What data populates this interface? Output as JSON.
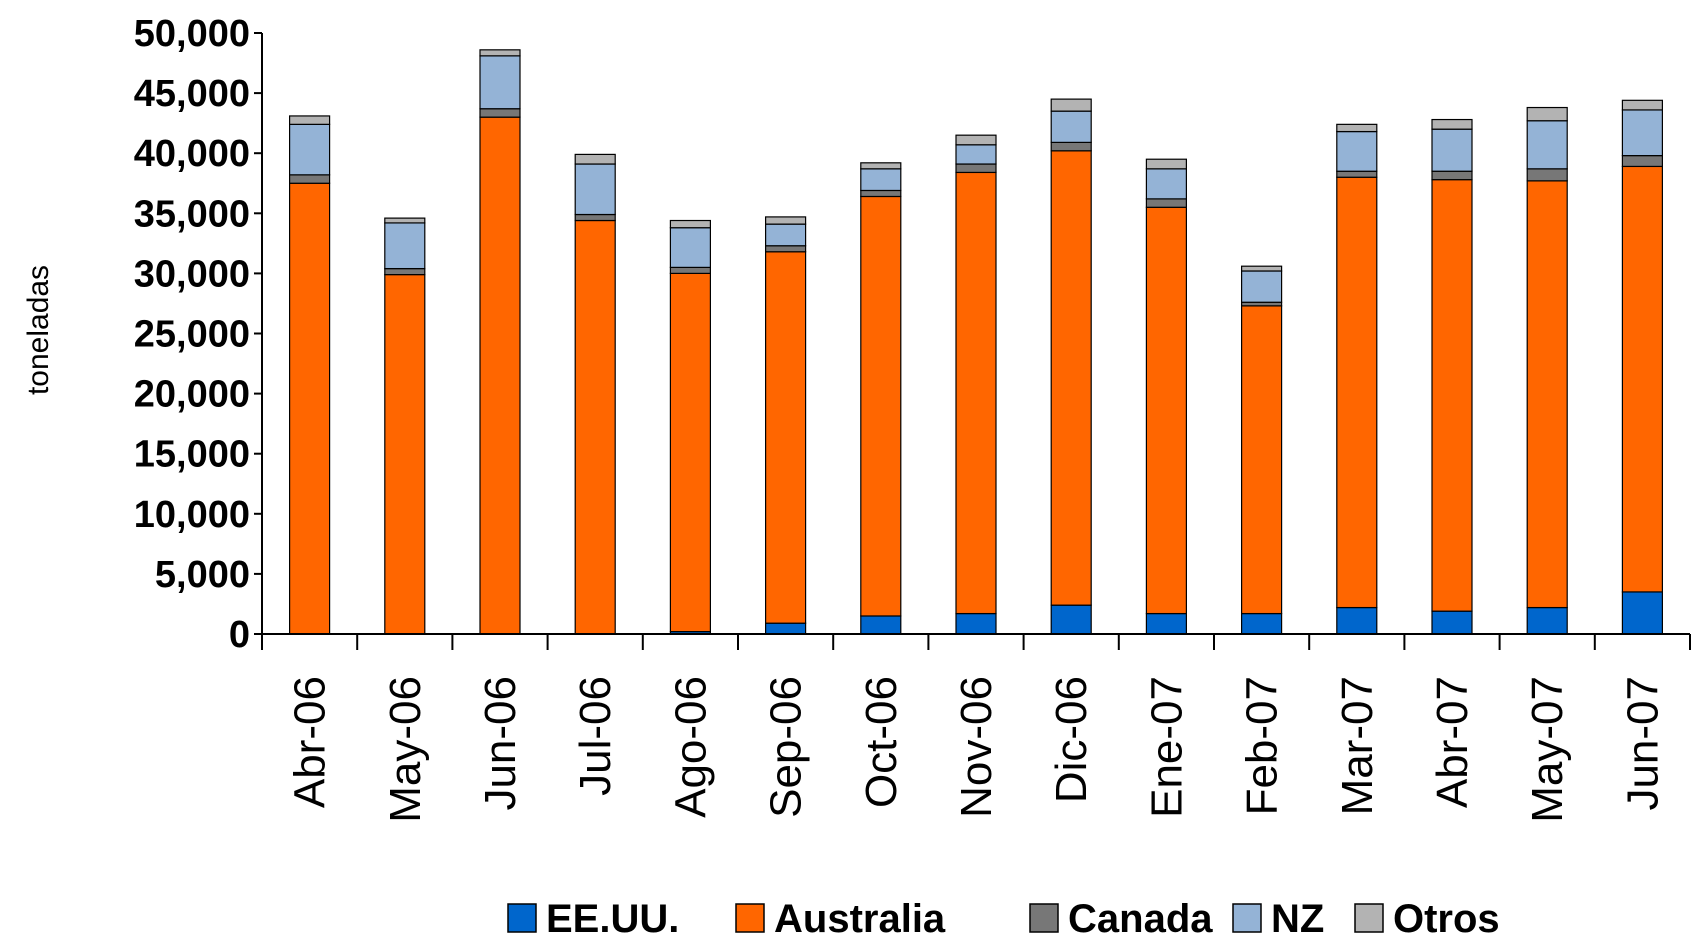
{
  "chart_data": {
    "type": "bar",
    "stacked": true,
    "ylabel": "toneladas",
    "ylim": [
      0,
      50000
    ],
    "yticks": [
      "0",
      "5,000",
      "10,000",
      "15,000",
      "20,000",
      "25,000",
      "30,000",
      "35,000",
      "40,000",
      "45,000",
      "50,000"
    ],
    "grid": false,
    "legend_position": "bottom",
    "categories": [
      "Abr-06",
      "May-06",
      "Jun-06",
      "Jul-06",
      "Ago-06",
      "Sep-06",
      "Oct-06",
      "Nov-06",
      "Dic-06",
      "Ene-07",
      "Feb-07",
      "Mar-07",
      "Abr-07",
      "May-07",
      "Jun-07"
    ],
    "series": [
      {
        "name": "EE.UU.",
        "color": "#0066CC",
        "values": [
          0,
          0,
          0,
          0,
          200,
          900,
          1500,
          1700,
          2400,
          1700,
          1700,
          2200,
          1900,
          2200,
          3500
        ]
      },
      {
        "name": "Australia",
        "color": "#FF6600",
        "values": [
          37500,
          29900,
          43000,
          34400,
          29800,
          30900,
          34900,
          36700,
          37800,
          33800,
          25600,
          35800,
          35900,
          35500,
          35400
        ]
      },
      {
        "name": "Canada",
        "color": "#777777",
        "values": [
          700,
          500,
          700,
          500,
          500,
          500,
          500,
          700,
          700,
          700,
          300,
          500,
          700,
          1000,
          900
        ]
      },
      {
        "name": "NZ",
        "color": "#94B3D6",
        "values": [
          4200,
          3800,
          4400,
          4200,
          3300,
          1800,
          1800,
          1600,
          2600,
          2500,
          2600,
          3300,
          3500,
          4000,
          3800
        ]
      },
      {
        "name": "Otros",
        "color": "#B3B3B3",
        "values": [
          700,
          400,
          500,
          800,
          600,
          600,
          500,
          800,
          1000,
          800,
          400,
          600,
          800,
          1100,
          800
        ]
      }
    ]
  }
}
